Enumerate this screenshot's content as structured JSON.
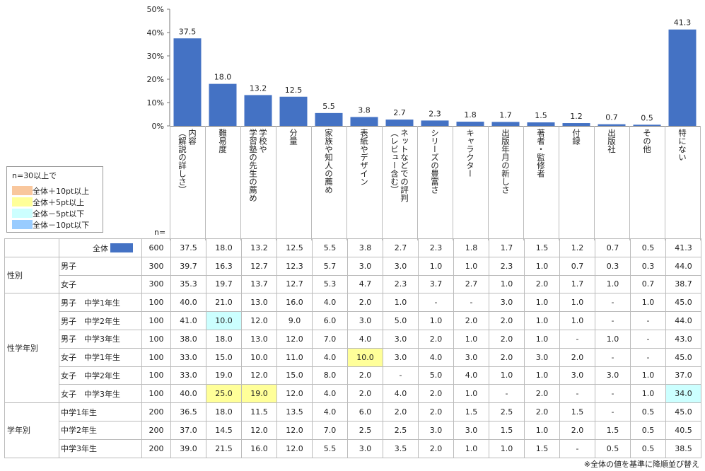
{
  "chart_data": {
    "type": "bar",
    "categories": [
      "内容\n（解説の詳しさ）",
      "難易度",
      "学校や\n学習塾の先生の薦め",
      "分量",
      "家族や知人の薦め",
      "表紙やデザイン",
      "ネットなどでの評判\n（レビュー含む）",
      "シリーズの豊富さ",
      "キャラクター",
      "出版年月の新しさ",
      "著者・監修者",
      "付録",
      "出版社",
      "その他",
      "特にない"
    ],
    "values": [
      37.5,
      18.0,
      13.2,
      12.5,
      5.5,
      3.8,
      2.7,
      2.3,
      1.8,
      1.7,
      1.5,
      1.2,
      0.7,
      0.5,
      41.3
    ],
    "data_labels": [
      "37.5",
      "18.0",
      "13.2",
      "12.5",
      "5.5",
      "3.8",
      "2.7",
      "2.3",
      "1.8",
      "1.7",
      "1.5",
      "1.2",
      "0.7",
      "0.5",
      "41.3"
    ],
    "ylim": [
      0,
      50
    ],
    "ytick_labels": [
      "0%",
      "10%",
      "20%",
      "30%",
      "40%",
      "50%"
    ],
    "bar_color": "#4472c4",
    "grid": false
  },
  "legend": {
    "title": "n=30以上で",
    "items": [
      {
        "label": "全体＋10pt以上",
        "color": "#f9c79d"
      },
      {
        "label": "全体＋5pt以上",
        "color": "#ffff99"
      },
      {
        "label": "全体－5pt以下",
        "color": "#ccffff"
      },
      {
        "label": "全体－10pt以下",
        "color": "#99ccff"
      }
    ]
  },
  "table": {
    "n_label": "n=",
    "total": {
      "label": "全体",
      "n": "600",
      "values": [
        "37.5",
        "18.0",
        "13.2",
        "12.5",
        "5.5",
        "3.8",
        "2.7",
        "2.3",
        "1.8",
        "1.7",
        "1.5",
        "1.2",
        "0.7",
        "0.5",
        "41.3"
      ]
    },
    "groups": [
      {
        "label": "性別",
        "rows": [
          {
            "label": "男子",
            "n": "300",
            "values": [
              "39.7",
              "16.3",
              "12.7",
              "12.3",
              "5.7",
              "3.0",
              "3.0",
              "1.0",
              "1.0",
              "2.3",
              "1.0",
              "0.7",
              "0.3",
              "0.3",
              "44.0"
            ],
            "highlights": {}
          },
          {
            "label": "女子",
            "n": "300",
            "values": [
              "35.3",
              "19.7",
              "13.7",
              "12.7",
              "5.3",
              "4.7",
              "2.3",
              "3.7",
              "2.7",
              "1.0",
              "2.0",
              "1.7",
              "1.0",
              "0.7",
              "38.7"
            ],
            "highlights": {}
          }
        ]
      },
      {
        "label": "性学年別",
        "rows": [
          {
            "label": "男子　中学1年生",
            "n": "100",
            "values": [
              "40.0",
              "21.0",
              "13.0",
              "16.0",
              "4.0",
              "2.0",
              "1.0",
              "-",
              "-",
              "3.0",
              "1.0",
              "1.0",
              "-",
              "1.0",
              "45.0"
            ],
            "highlights": {}
          },
          {
            "label": "男子　中学2年生",
            "n": "100",
            "values": [
              "41.0",
              "10.0",
              "12.0",
              "9.0",
              "6.0",
              "3.0",
              "5.0",
              "1.0",
              "2.0",
              "2.0",
              "1.0",
              "1.0",
              "-",
              "-",
              "44.0"
            ],
            "highlights": {
              "1": "c-lo5"
            }
          },
          {
            "label": "男子　中学3年生",
            "n": "100",
            "values": [
              "38.0",
              "18.0",
              "13.0",
              "12.0",
              "7.0",
              "4.0",
              "3.0",
              "2.0",
              "1.0",
              "2.0",
              "1.0",
              "-",
              "1.0",
              "-",
              "43.0"
            ],
            "highlights": {}
          },
          {
            "label": "女子　中学1年生",
            "n": "100",
            "values": [
              "33.0",
              "15.0",
              "10.0",
              "11.0",
              "4.0",
              "10.0",
              "3.0",
              "4.0",
              "3.0",
              "2.0",
              "3.0",
              "2.0",
              "-",
              "-",
              "45.0"
            ],
            "highlights": {
              "5": "c-hi5"
            }
          },
          {
            "label": "女子　中学2年生",
            "n": "100",
            "values": [
              "33.0",
              "19.0",
              "12.0",
              "15.0",
              "8.0",
              "2.0",
              "-",
              "5.0",
              "4.0",
              "1.0",
              "1.0",
              "3.0",
              "3.0",
              "1.0",
              "37.0"
            ],
            "highlights": {}
          },
          {
            "label": "女子　中学3年生",
            "n": "100",
            "values": [
              "40.0",
              "25.0",
              "19.0",
              "12.0",
              "4.0",
              "2.0",
              "4.0",
              "2.0",
              "1.0",
              "-",
              "2.0",
              "-",
              "-",
              "1.0",
              "34.0"
            ],
            "highlights": {
              "1": "c-hi5",
              "2": "c-hi5",
              "14": "c-lo5"
            }
          }
        ]
      },
      {
        "label": "学年別",
        "rows": [
          {
            "label": "中学1年生",
            "n": "200",
            "values": [
              "36.5",
              "18.0",
              "11.5",
              "13.5",
              "4.0",
              "6.0",
              "2.0",
              "2.0",
              "1.5",
              "2.5",
              "2.0",
              "1.5",
              "-",
              "0.5",
              "45.0"
            ],
            "highlights": {}
          },
          {
            "label": "中学2年生",
            "n": "200",
            "values": [
              "37.0",
              "14.5",
              "12.0",
              "12.0",
              "7.0",
              "2.5",
              "2.5",
              "3.0",
              "3.0",
              "1.5",
              "1.0",
              "2.0",
              "1.5",
              "0.5",
              "40.5"
            ],
            "highlights": {}
          },
          {
            "label": "中学3年生",
            "n": "200",
            "values": [
              "39.0",
              "21.5",
              "16.0",
              "12.0",
              "5.5",
              "3.0",
              "3.5",
              "2.0",
              "1.0",
              "1.0",
              "1.5",
              "-",
              "0.5",
              "0.5",
              "38.5"
            ],
            "highlights": {}
          }
        ]
      }
    ]
  },
  "note": "※全体の値を基準に降順並び替え"
}
